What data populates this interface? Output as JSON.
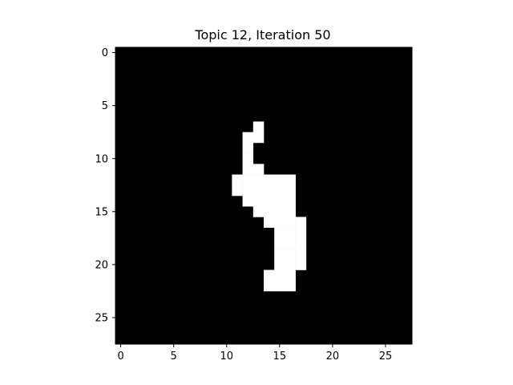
{
  "chart_data": {
    "type": "heatmap",
    "title": "Topic 12, Iteration 50",
    "xlabel": "",
    "ylabel": "",
    "grid": false,
    "colormap": "gray",
    "colors": {
      "background": "#000000",
      "foreground": "#ffffff"
    },
    "shape": [
      28,
      28
    ],
    "xlim": [
      -0.5,
      27.5
    ],
    "ylim": [
      27.5,
      -0.5
    ],
    "xticks": [
      0,
      5,
      10,
      15,
      20,
      25
    ],
    "yticks": [
      0,
      5,
      10,
      15,
      20,
      25
    ],
    "xtick_labels": [
      "0",
      "5",
      "10",
      "15",
      "20",
      "25"
    ],
    "ytick_labels": [
      "0",
      "5",
      "10",
      "15",
      "20",
      "25"
    ],
    "active_pixels": [
      {
        "row": 7,
        "cols": [
          13
        ]
      },
      {
        "row": 8,
        "cols": [
          12,
          13
        ]
      },
      {
        "row": 9,
        "cols": [
          12
        ]
      },
      {
        "row": 10,
        "cols": [
          12
        ]
      },
      {
        "row": 11,
        "cols": [
          12,
          13
        ]
      },
      {
        "row": 12,
        "cols": [
          11,
          12,
          13,
          14,
          15,
          16
        ]
      },
      {
        "row": 13,
        "cols": [
          11,
          12,
          13,
          14,
          15,
          16
        ]
      },
      {
        "row": 14,
        "cols": [
          12,
          13,
          14,
          15,
          16
        ]
      },
      {
        "row": 15,
        "cols": [
          13,
          14,
          15,
          16
        ]
      },
      {
        "row": 16,
        "cols": [
          14,
          15,
          16,
          17
        ]
      },
      {
        "row": 17,
        "cols": [
          15,
          16,
          17
        ]
      },
      {
        "row": 18,
        "cols": [
          15,
          16,
          17
        ]
      },
      {
        "row": 19,
        "cols": [
          15,
          16,
          17
        ]
      },
      {
        "row": 20,
        "cols": [
          15,
          16,
          17
        ]
      },
      {
        "row": 21,
        "cols": [
          14,
          15,
          16
        ]
      },
      {
        "row": 22,
        "cols": [
          14,
          15,
          16
        ]
      }
    ]
  }
}
